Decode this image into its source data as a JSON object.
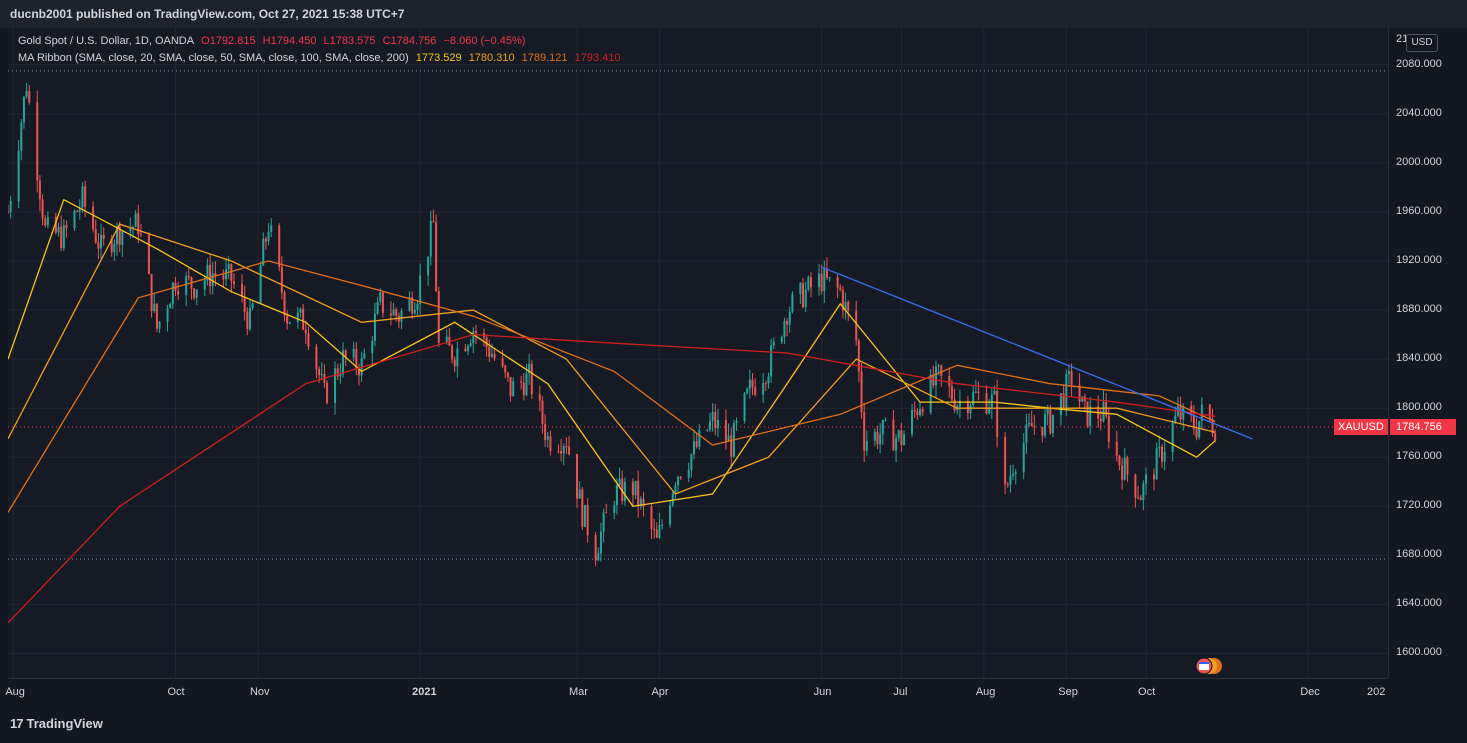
{
  "header": {
    "publisher": "ducnb2001 published on TradingView.com, Oct 27, 2021 15:38 UTC+7"
  },
  "legend": {
    "symbol": "Gold Spot / U.S. Dollar, 1D, OANDA",
    "open": "O1792.815",
    "high": "H1794.450",
    "low": "L1783.575",
    "close": "C1784.756",
    "change": "−8.060 (−0.45%)",
    "ma_label": "MA Ribbon (SMA, close, 20, SMA, close, 50, SMA, close, 100, SMA, close, 200)",
    "ma_values": [
      "1773.529",
      "1780.310",
      "1789.121",
      "1793.410"
    ]
  },
  "axis": {
    "currency": "USD",
    "partial_top": "21",
    "partial_right": "202"
  },
  "price_tag": {
    "symbol": "XAUUSD",
    "value": "1784.756"
  },
  "footer": {
    "brand": "TradingView"
  },
  "colors": {
    "up": "#26a69a",
    "down": "#ef5350",
    "ma20": "#f5c518",
    "ma50": "#f0a020",
    "ma100": "#e0701a",
    "ma200": "#d02020",
    "trend": "#3a6fe8",
    "last": "#f23645"
  },
  "icons": {
    "calendar_events": "economic-events-icon",
    "logo": "tradingview-logo-icon"
  },
  "chart_data": {
    "type": "candlestick",
    "title": "Gold Spot / U.S. Dollar, 1D, OANDA",
    "ylim": [
      1580,
      2110
    ],
    "y_ticks": [
      2080,
      2040,
      2000,
      1960,
      1920,
      1880,
      1840,
      1800,
      1760,
      1720,
      1680,
      1640,
      1600
    ],
    "y_tick_labels": [
      "2080.000",
      "2040.000",
      "2000.000",
      "1960.000",
      "1920.000",
      "1880.000",
      "1840.000",
      "1800.000",
      "1760.000",
      "1720.000",
      "1680.000",
      "1640.000",
      "1600.000"
    ],
    "x_range": [
      "2020-07-30",
      "2021-12-31"
    ],
    "x_ticks": [
      {
        "date": "2020-08-01",
        "label": "Aug"
      },
      {
        "date": "2020-10-01",
        "label": "Oct"
      },
      {
        "date": "2020-11-01",
        "label": "Nov"
      },
      {
        "date": "2021-01-01",
        "label": "2021"
      },
      {
        "date": "2021-03-01",
        "label": "Mar"
      },
      {
        "date": "2021-04-01",
        "label": "Apr"
      },
      {
        "date": "2021-06-01",
        "label": "Jun"
      },
      {
        "date": "2021-07-01",
        "label": "Jul"
      },
      {
        "date": "2021-08-01",
        "label": "Aug"
      },
      {
        "date": "2021-09-01",
        "label": "Sep"
      },
      {
        "date": "2021-10-01",
        "label": "Oct"
      },
      {
        "date": "2021-12-01",
        "label": "Dec"
      }
    ],
    "horizontal_levels": [
      2075,
      1677
    ],
    "last_price": 1784.756,
    "trendline": {
      "start": [
        "2021-06-01",
        1915
      ],
      "end": [
        "2021-11-10",
        1775
      ]
    },
    "closes": [
      [
        "2020-07-30",
        1960
      ],
      [
        "2020-08-06",
        2065
      ],
      [
        "2020-08-13",
        1945
      ],
      [
        "2020-08-20",
        1940
      ],
      [
        "2020-08-27",
        1970
      ],
      [
        "2020-09-03",
        1930
      ],
      [
        "2020-09-10",
        1945
      ],
      [
        "2020-09-17",
        1950
      ],
      [
        "2020-09-24",
        1865
      ],
      [
        "2020-10-01",
        1905
      ],
      [
        "2020-10-08",
        1900
      ],
      [
        "2020-10-15",
        1910
      ],
      [
        "2020-10-22",
        1905
      ],
      [
        "2020-10-29",
        1870
      ],
      [
        "2020-11-05",
        1950
      ],
      [
        "2020-11-12",
        1875
      ],
      [
        "2020-11-19",
        1870
      ],
      [
        "2020-11-26",
        1810
      ],
      [
        "2020-12-03",
        1840
      ],
      [
        "2020-12-10",
        1835
      ],
      [
        "2020-12-17",
        1885
      ],
      [
        "2020-12-24",
        1875
      ],
      [
        "2020-12-31",
        1895
      ],
      [
        "2021-01-06",
        1950
      ],
      [
        "2021-01-08",
        1850
      ],
      [
        "2021-01-14",
        1845
      ],
      [
        "2021-01-21",
        1865
      ],
      [
        "2021-01-28",
        1845
      ],
      [
        "2021-02-04",
        1815
      ],
      [
        "2021-02-11",
        1825
      ],
      [
        "2021-02-18",
        1775
      ],
      [
        "2021-02-25",
        1775
      ],
      [
        "2021-03-03",
        1715
      ],
      [
        "2021-03-08",
        1685
      ],
      [
        "2021-03-15",
        1730
      ],
      [
        "2021-03-22",
        1735
      ],
      [
        "2021-03-31",
        1690
      ],
      [
        "2021-04-07",
        1745
      ],
      [
        "2021-04-14",
        1765
      ],
      [
        "2021-04-21",
        1790
      ],
      [
        "2021-04-28",
        1770
      ],
      [
        "2021-05-05",
        1815
      ],
      [
        "2021-05-12",
        1835
      ],
      [
        "2021-05-19",
        1880
      ],
      [
        "2021-05-26",
        1895
      ],
      [
        "2021-06-01",
        1905
      ],
      [
        "2021-06-08",
        1895
      ],
      [
        "2021-06-14",
        1855
      ],
      [
        "2021-06-17",
        1775
      ],
      [
        "2021-06-24",
        1780
      ],
      [
        "2021-07-01",
        1775
      ],
      [
        "2021-07-08",
        1805
      ],
      [
        "2021-07-15",
        1825
      ],
      [
        "2021-07-22",
        1805
      ],
      [
        "2021-07-29",
        1810
      ],
      [
        "2021-08-05",
        1805
      ],
      [
        "2021-08-09",
        1730
      ],
      [
        "2021-08-12",
        1755
      ],
      [
        "2021-08-19",
        1785
      ],
      [
        "2021-08-26",
        1790
      ],
      [
        "2021-09-03",
        1825
      ],
      [
        "2021-09-08",
        1795
      ],
      [
        "2021-09-15",
        1795
      ],
      [
        "2021-09-20",
        1760
      ],
      [
        "2021-09-29",
        1730
      ],
      [
        "2021-10-06",
        1760
      ],
      [
        "2021-10-13",
        1795
      ],
      [
        "2021-10-20",
        1785
      ],
      [
        "2021-10-22",
        1795
      ],
      [
        "2021-10-27",
        1785
      ]
    ],
    "ma_series": [
      {
        "name": "SMA 20",
        "values": [
          [
            "2020-07-30",
            1840
          ],
          [
            "2020-08-20",
            1970
          ],
          [
            "2020-09-24",
            1930
          ],
          [
            "2020-10-22",
            1895
          ],
          [
            "2020-11-19",
            1870
          ],
          [
            "2020-12-10",
            1830
          ],
          [
            "2021-01-14",
            1870
          ],
          [
            "2021-02-18",
            1820
          ],
          [
            "2021-03-22",
            1720
          ],
          [
            "2021-04-21",
            1730
          ],
          [
            "2021-05-19",
            1820
          ],
          [
            "2021-06-08",
            1885
          ],
          [
            "2021-07-08",
            1805
          ],
          [
            "2021-08-05",
            1805
          ],
          [
            "2021-08-26",
            1800
          ],
          [
            "2021-09-20",
            1795
          ],
          [
            "2021-10-20",
            1760
          ],
          [
            "2021-10-27",
            1773.5
          ]
        ]
      },
      {
        "name": "SMA 50",
        "values": [
          [
            "2020-07-30",
            1775
          ],
          [
            "2020-09-10",
            1950
          ],
          [
            "2020-10-22",
            1920
          ],
          [
            "2020-12-10",
            1870
          ],
          [
            "2021-01-21",
            1880
          ],
          [
            "2021-02-25",
            1840
          ],
          [
            "2021-04-07",
            1730
          ],
          [
            "2021-05-12",
            1760
          ],
          [
            "2021-06-14",
            1840
          ],
          [
            "2021-07-22",
            1800
          ],
          [
            "2021-08-26",
            1800
          ],
          [
            "2021-09-20",
            1800
          ],
          [
            "2021-10-27",
            1780.3
          ]
        ]
      },
      {
        "name": "SMA 100",
        "values": [
          [
            "2020-07-30",
            1715
          ],
          [
            "2020-09-17",
            1890
          ],
          [
            "2020-11-05",
            1920
          ],
          [
            "2020-12-10",
            1900
          ],
          [
            "2021-01-21",
            1875
          ],
          [
            "2021-03-15",
            1830
          ],
          [
            "2021-04-21",
            1770
          ],
          [
            "2021-06-08",
            1795
          ],
          [
            "2021-07-22",
            1835
          ],
          [
            "2021-08-26",
            1820
          ],
          [
            "2021-10-06",
            1810
          ],
          [
            "2021-10-27",
            1789.1
          ]
        ]
      },
      {
        "name": "SMA 200",
        "values": [
          [
            "2020-07-30",
            1625
          ],
          [
            "2020-09-10",
            1720
          ],
          [
            "2020-11-19",
            1820
          ],
          [
            "2021-01-21",
            1860
          ],
          [
            "2021-03-15",
            1853
          ],
          [
            "2021-05-19",
            1845
          ],
          [
            "2021-07-22",
            1820
          ],
          [
            "2021-09-20",
            1805
          ],
          [
            "2021-10-27",
            1793.4
          ]
        ]
      }
    ]
  }
}
